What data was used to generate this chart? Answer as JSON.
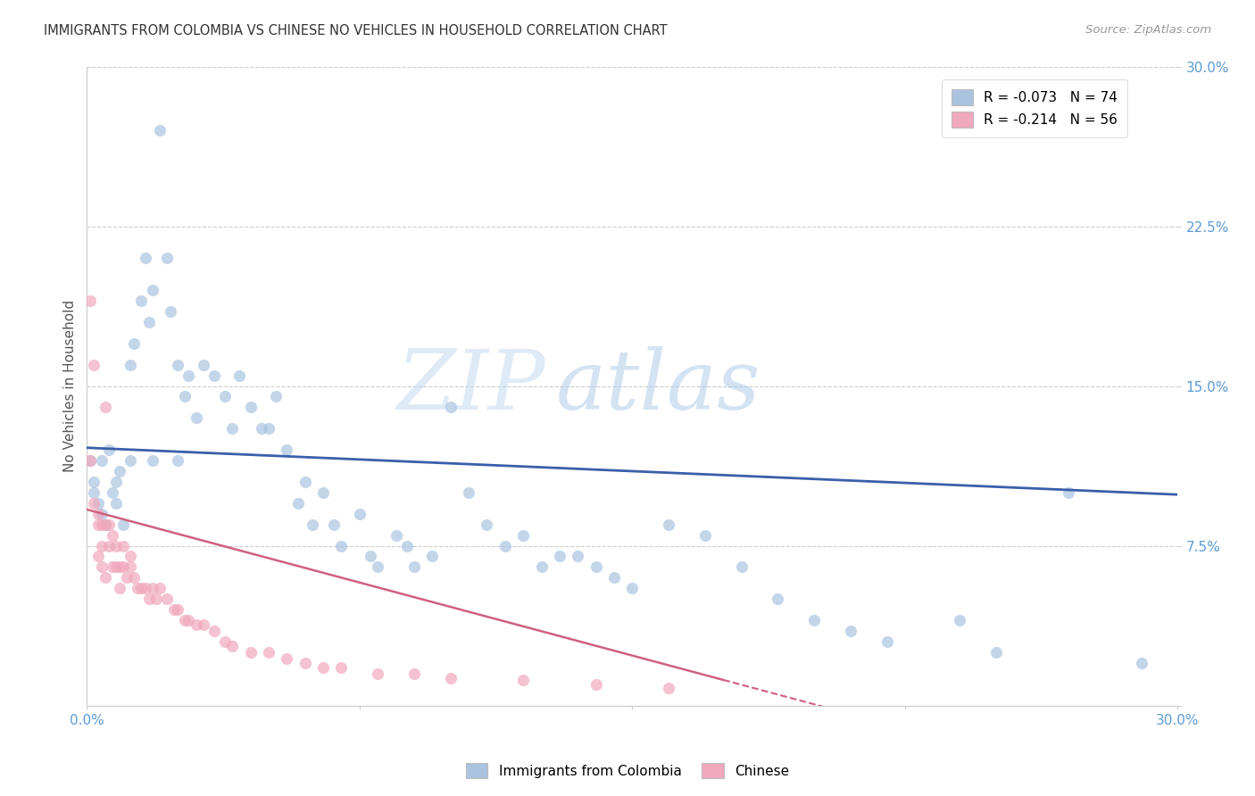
{
  "title": "IMMIGRANTS FROM COLOMBIA VS CHINESE NO VEHICLES IN HOUSEHOLD CORRELATION CHART",
  "source": "Source: ZipAtlas.com",
  "ylabel": "No Vehicles in Household",
  "xlim": [
    0.0,
    0.3
  ],
  "ylim": [
    0.0,
    0.3
  ],
  "legend_entry1": "R = -0.073   N = 74",
  "legend_entry2": "R = -0.214   N = 56",
  "legend_label1": "Immigrants from Colombia",
  "legend_label2": "Chinese",
  "blue_color": "#aac4e0",
  "pink_color": "#f0a8bc",
  "blue_line_color": "#3a5faa",
  "pink_line_color": "#d06080",
  "watermark_zip": "ZIP",
  "watermark_atlas": "atlas",
  "blue_r": -0.073,
  "blue_n": 74,
  "pink_r": -0.214,
  "pink_n": 56,
  "blue_line_x0": 0.0,
  "blue_line_y0": 0.121,
  "blue_line_x1": 0.3,
  "blue_line_y1": 0.099,
  "pink_line_x0": 0.0,
  "pink_line_y0": 0.092,
  "pink_line_x1": 0.175,
  "pink_line_y1": 0.012,
  "colombia_x": [
    0.001,
    0.002,
    0.003,
    0.004,
    0.005,
    0.006,
    0.007,
    0.008,
    0.009,
    0.01,
    0.012,
    0.013,
    0.015,
    0.016,
    0.017,
    0.018,
    0.02,
    0.022,
    0.023,
    0.025,
    0.027,
    0.028,
    0.03,
    0.032,
    0.035,
    0.038,
    0.04,
    0.042,
    0.045,
    0.048,
    0.05,
    0.052,
    0.055,
    0.058,
    0.06,
    0.062,
    0.065,
    0.068,
    0.07,
    0.075,
    0.078,
    0.08,
    0.085,
    0.088,
    0.09,
    0.095,
    0.1,
    0.105,
    0.11,
    0.115,
    0.12,
    0.125,
    0.13,
    0.135,
    0.14,
    0.145,
    0.15,
    0.16,
    0.17,
    0.18,
    0.19,
    0.2,
    0.21,
    0.22,
    0.24,
    0.25,
    0.27,
    0.29,
    0.002,
    0.004,
    0.008,
    0.012,
    0.018,
    0.025
  ],
  "colombia_y": [
    0.115,
    0.105,
    0.095,
    0.09,
    0.085,
    0.12,
    0.1,
    0.095,
    0.11,
    0.085,
    0.16,
    0.17,
    0.19,
    0.21,
    0.18,
    0.195,
    0.27,
    0.21,
    0.185,
    0.16,
    0.145,
    0.155,
    0.135,
    0.16,
    0.155,
    0.145,
    0.13,
    0.155,
    0.14,
    0.13,
    0.13,
    0.145,
    0.12,
    0.095,
    0.105,
    0.085,
    0.1,
    0.085,
    0.075,
    0.09,
    0.07,
    0.065,
    0.08,
    0.075,
    0.065,
    0.07,
    0.14,
    0.1,
    0.085,
    0.075,
    0.08,
    0.065,
    0.07,
    0.07,
    0.065,
    0.06,
    0.055,
    0.085,
    0.08,
    0.065,
    0.05,
    0.04,
    0.035,
    0.03,
    0.04,
    0.025,
    0.1,
    0.02,
    0.1,
    0.115,
    0.105,
    0.115,
    0.115,
    0.115
  ],
  "chinese_x": [
    0.001,
    0.002,
    0.003,
    0.004,
    0.004,
    0.005,
    0.005,
    0.006,
    0.006,
    0.007,
    0.007,
    0.008,
    0.008,
    0.009,
    0.009,
    0.01,
    0.01,
    0.011,
    0.012,
    0.012,
    0.013,
    0.014,
    0.015,
    0.016,
    0.017,
    0.018,
    0.019,
    0.02,
    0.022,
    0.024,
    0.025,
    0.027,
    0.028,
    0.03,
    0.032,
    0.035,
    0.038,
    0.04,
    0.045,
    0.05,
    0.055,
    0.06,
    0.065,
    0.07,
    0.08,
    0.09,
    0.1,
    0.12,
    0.14,
    0.16,
    0.001,
    0.002,
    0.003,
    0.003,
    0.004,
    0.005
  ],
  "chinese_y": [
    0.19,
    0.16,
    0.09,
    0.085,
    0.075,
    0.14,
    0.085,
    0.085,
    0.075,
    0.08,
    0.065,
    0.075,
    0.065,
    0.065,
    0.055,
    0.075,
    0.065,
    0.06,
    0.07,
    0.065,
    0.06,
    0.055,
    0.055,
    0.055,
    0.05,
    0.055,
    0.05,
    0.055,
    0.05,
    0.045,
    0.045,
    0.04,
    0.04,
    0.038,
    0.038,
    0.035,
    0.03,
    0.028,
    0.025,
    0.025,
    0.022,
    0.02,
    0.018,
    0.018,
    0.015,
    0.015,
    0.013,
    0.012,
    0.01,
    0.008,
    0.115,
    0.095,
    0.085,
    0.07,
    0.065,
    0.06
  ]
}
